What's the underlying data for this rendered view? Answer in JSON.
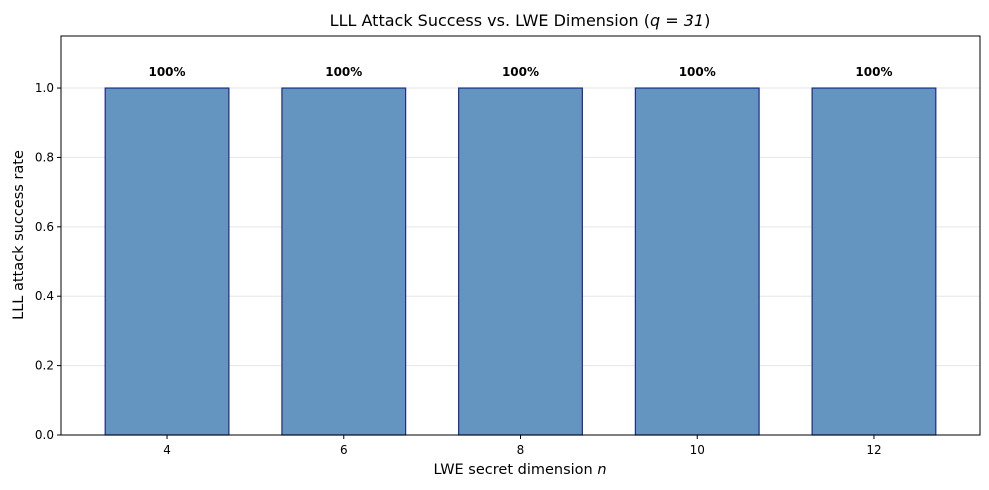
{
  "chart_data": {
    "type": "bar",
    "title": "LLL Attack Success vs. LWE Dimension (",
    "title_math": "q = 31",
    "title_end": ")",
    "xlabel": "LWE secret dimension ",
    "xlabel_math": "n",
    "ylabel": "LLL attack success rate",
    "categories": [
      "4",
      "6",
      "8",
      "10",
      "12"
    ],
    "values": [
      1.0,
      1.0,
      1.0,
      1.0,
      1.0
    ],
    "data_labels": [
      "100%",
      "100%",
      "100%",
      "100%",
      "100%"
    ],
    "ylim": [
      0,
      1.15
    ],
    "yticks": [
      0.0,
      0.2,
      0.4,
      0.6,
      0.8,
      1.0
    ],
    "ytick_labels": [
      "0.0",
      "0.2",
      "0.4",
      "0.6",
      "0.8",
      "1.0"
    ],
    "grid": "horizontal",
    "legend": "none",
    "colors": {
      "bar_fill": "#6495c0",
      "bar_edge": "#1f2a8a",
      "grid": "#e6e6e6",
      "axes": "#000000"
    }
  }
}
